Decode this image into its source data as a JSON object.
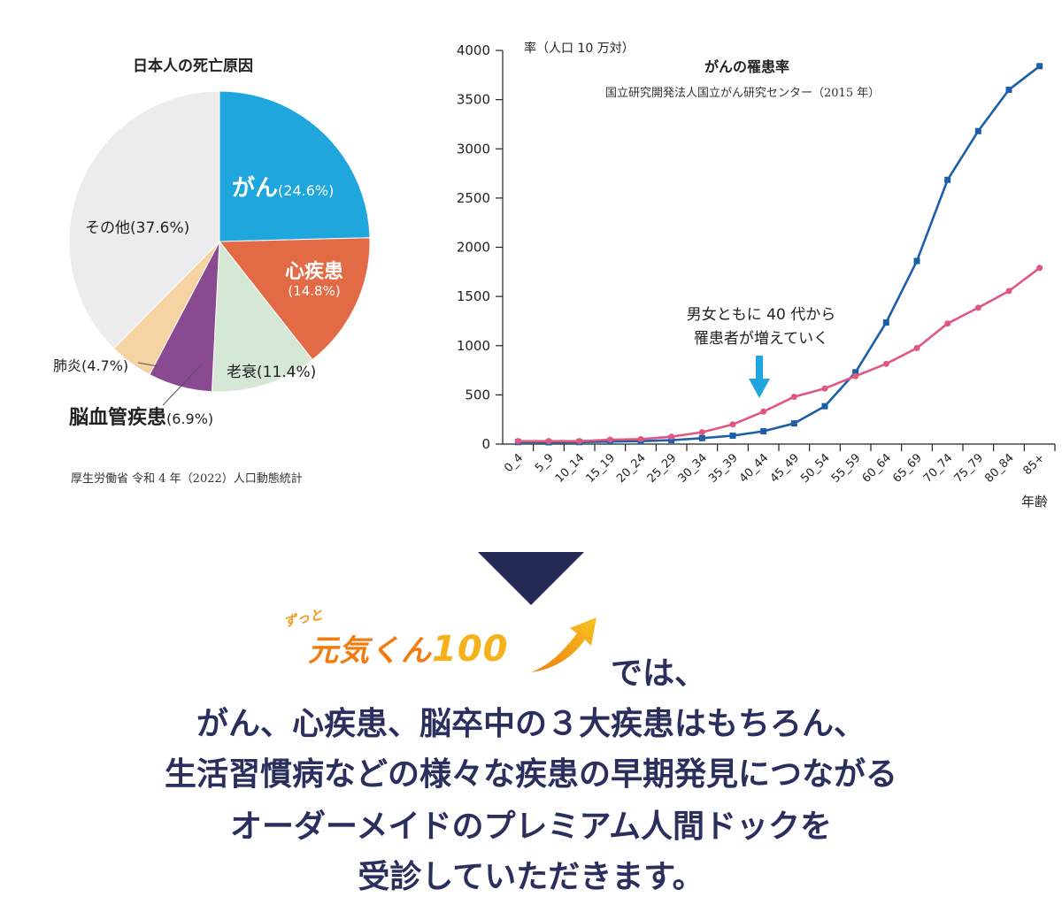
{
  "chart_data": [
    {
      "type": "pie",
      "title": "日本人の死亡原因",
      "slices": [
        {
          "label": "がん",
          "value_text": "(24.6%)",
          "value": 24.6,
          "color": "#1fa6dc"
        },
        {
          "label": "心疾患",
          "value_text": "(14.8%)",
          "value": 14.8,
          "color": "#e26b46"
        },
        {
          "label": "老衰",
          "value_text": "(11.4%)",
          "value": 11.4,
          "color": "#d5e8d6"
        },
        {
          "label": "脳血管疾患",
          "value_text": "(6.9%)",
          "value": 6.9,
          "color": "#8a4a92"
        },
        {
          "label": "肺炎",
          "value_text": "(4.7%)",
          "value": 4.7,
          "color": "#f6d3a2"
        },
        {
          "label": "その他",
          "value_text": "(37.6%)",
          "value": 37.6,
          "color": "#ececec"
        }
      ],
      "source": "厚生労働省 令和 4 年（2022）人口動態統計"
    },
    {
      "type": "line",
      "title": "がんの罹患率",
      "subtitle": "国立研究開発法人国立がん研究センター（2015 年）",
      "ylabel": "率（人口 10 万対）",
      "xlabel": "年齢",
      "ylim": [
        0,
        4000
      ],
      "yticks": [
        0,
        500,
        1000,
        1500,
        2000,
        2500,
        3000,
        3500,
        4000
      ],
      "categories": [
        "0_4",
        "5_9",
        "10_14",
        "15_19",
        "20_24",
        "25_29",
        "30_34",
        "35_39",
        "40_44",
        "45_49",
        "50_54",
        "55_59",
        "60_64",
        "65_69",
        "70_74",
        "75_79",
        "80_84",
        "85+"
      ],
      "series": [
        {
          "color": "#1c5fa8",
          "marker": "square",
          "values": [
            20,
            18,
            20,
            25,
            30,
            40,
            60,
            85,
            130,
            210,
            385,
            730,
            1235,
            1860,
            2685,
            3180,
            3600,
            3840
          ]
        },
        {
          "color": "#e05780",
          "marker": "circle",
          "values": [
            30,
            30,
            30,
            45,
            50,
            75,
            120,
            200,
            330,
            480,
            565,
            690,
            815,
            975,
            1225,
            1385,
            1555,
            1790
          ]
        }
      ],
      "annotation": [
        "男女ともに 40 代から",
        "罹患者が増えていく"
      ]
    }
  ],
  "logo": {
    "small_text": "ずっと",
    "main_text": "元気くん",
    "number": "100",
    "colors": {
      "main": "#f07d11",
      "light": "#f6b21b"
    }
  },
  "tagline": {
    "suffix": "では、",
    "lines": [
      "がん、心疾患、脳卒中の３大疾患はもちろん、",
      "生活習慣病などの様々な疾患の早期発見につながる",
      "オーダーメイドのプレミアム人間ドックを",
      "受診していただきます。"
    ]
  },
  "colors": {
    "navy": "#2a2f5e",
    "arrow_blue": "#1fa6dc"
  }
}
